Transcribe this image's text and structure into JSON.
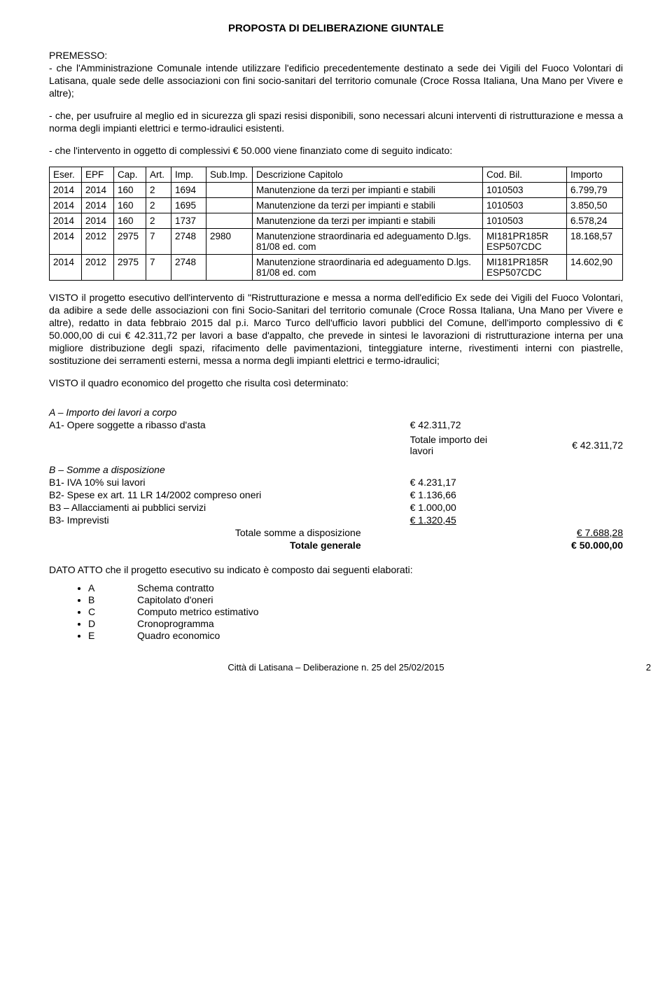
{
  "title": "PROPOSTA DI DELIBERAZIONE GIUNTALE",
  "premesso": {
    "heading": "PREMESSO:",
    "p1": "- che l'Amministrazione Comunale intende utilizzare l'edificio precedentemente destinato a sede dei Vigili del Fuoco Volontari di Latisana, quale sede delle associazioni con fini socio-sanitari del territorio comunale (Croce Rossa Italiana, Una Mano per Vivere e altre);",
    "p2": "- che, per usufruire al meglio ed in sicurezza gli spazi resisi disponibili, sono necessari alcuni interventi di ristrutturazione e messa a norma degli impianti elettrici e termo-idraulici esistenti.",
    "p3": "- che l'intervento in oggetto di complessivi € 50.000 viene finanziato come di seguito indicato:"
  },
  "table": {
    "headers": [
      "Eser.",
      "EPF",
      "Cap.",
      "Art.",
      "Imp.",
      "Sub.Imp.",
      "Descrizione Capitolo",
      "Cod. Bil.",
      "Importo"
    ],
    "rows": [
      {
        "eser": "2014",
        "epf": "2014",
        "cap": "160",
        "art": "2",
        "imp": "1694",
        "sub": "",
        "desc": "Manutenzione da terzi per impianti e stabili",
        "bil": "1010503",
        "importo": "6.799,79"
      },
      {
        "eser": "2014",
        "epf": "2014",
        "cap": "160",
        "art": "2",
        "imp": "1695",
        "sub": "",
        "desc": "Manutenzione da terzi per impianti e stabili",
        "bil": "1010503",
        "importo": "3.850,50"
      },
      {
        "eser": "2014",
        "epf": "2014",
        "cap": "160",
        "art": "2",
        "imp": "1737",
        "sub": "",
        "desc": "Manutenzione da terzi per impianti e stabili",
        "bil": "1010503",
        "importo": "6.578,24"
      },
      {
        "eser": "2014",
        "epf": "2012",
        "cap": "2975",
        "art": "7",
        "imp": "2748",
        "sub": "2980",
        "desc": "Manutenzione straordinaria ed adeguamento D.lgs. 81/08 ed. com",
        "bil": "MI181PR185R ESP507CDC",
        "importo": "18.168,57"
      },
      {
        "eser": "2014",
        "epf": "2012",
        "cap": "2975",
        "art": "7",
        "imp": "2748",
        "sub": "",
        "desc": "Manutenzione straordinaria ed adeguamento D.lgs. 81/08 ed. com",
        "bil": "MI181PR185R ESP507CDC",
        "importo": "14.602,90"
      }
    ]
  },
  "visto1": "VISTO il progetto esecutivo dell'intervento di \"Ristrutturazione e messa a norma dell'edificio Ex sede dei Vigili del Fuoco Volontari, da adibire a sede delle associazioni con fini Socio-Sanitari del territorio comunale (Croce Rossa Italiana, Una Mano per Vivere e altre), redatto in data febbraio 2015  dal p.i. Marco Turco dell'ufficio lavori pubblici del Comune, dell'importo complessivo di € 50.000,00 di cui € 42.311,72 per lavori a base d'appalto, che prevede in sintesi le lavorazioni di ristrutturazione interna per una migliore distribuzione degli spazi, rifacimento delle pavimentazioni, tinteggiature interne, rivestimenti interni con piastrelle, sostituzione dei serramenti esterni, messa a norma degli impianti elettrici e termo-idraulici;",
  "visto2": "VISTO il quadro economico del progetto che risulta così determinato:",
  "budget": {
    "A_title": "A – Importo dei lavori a corpo",
    "A1_label": "A1- Opere soggette a ribasso d'asta",
    "A1_val": "€     42.311,72",
    "totA_label": "Totale importo dei lavori",
    "totA_val": "€     42.311,72",
    "B_title": "B – Somme a disposizione",
    "B1_label": "B1- IVA 10% sui lavori",
    "B1_val": "€      4.231,17",
    "B2_label": "B2- Spese ex art. 11 LR 14/2002 compreso oneri",
    "B2_val": "€      1.136,66",
    "B3a_label": "B3 – Allacciamenti ai pubblici servizi",
    "B3a_val": "€      1.000,00",
    "B3b_label": "B3- Imprevisti",
    "B3b_val": "€      1.320,45",
    "totB_label": "Totale somme a disposizione",
    "totB_val": "€       7.688,28",
    "totG_label": "Totale generale",
    "totG_val": "€     50.000,00"
  },
  "dato": "DATO ATTO che il progetto esecutivo su indicato è composto dai seguenti elaborati:",
  "elaborati": [
    {
      "code": "A",
      "label": "Schema contratto"
    },
    {
      "code": "B",
      "label": "Capitolato d'oneri"
    },
    {
      "code": "C",
      "label": "Computo metrico estimativo"
    },
    {
      "code": "D",
      "label": "Cronoprogramma"
    },
    {
      "code": "E",
      "label": "Quadro economico"
    }
  ],
  "footer": "Città di Latisana – Deliberazione n. 25 del 25/02/2015",
  "page_number": "2",
  "colors": {
    "text": "#000000",
    "background": "#ffffff",
    "border": "#000000"
  },
  "typography": {
    "base_font": "Arial",
    "base_size_pt": 11,
    "title_size_pt": 12,
    "title_weight": "bold"
  }
}
